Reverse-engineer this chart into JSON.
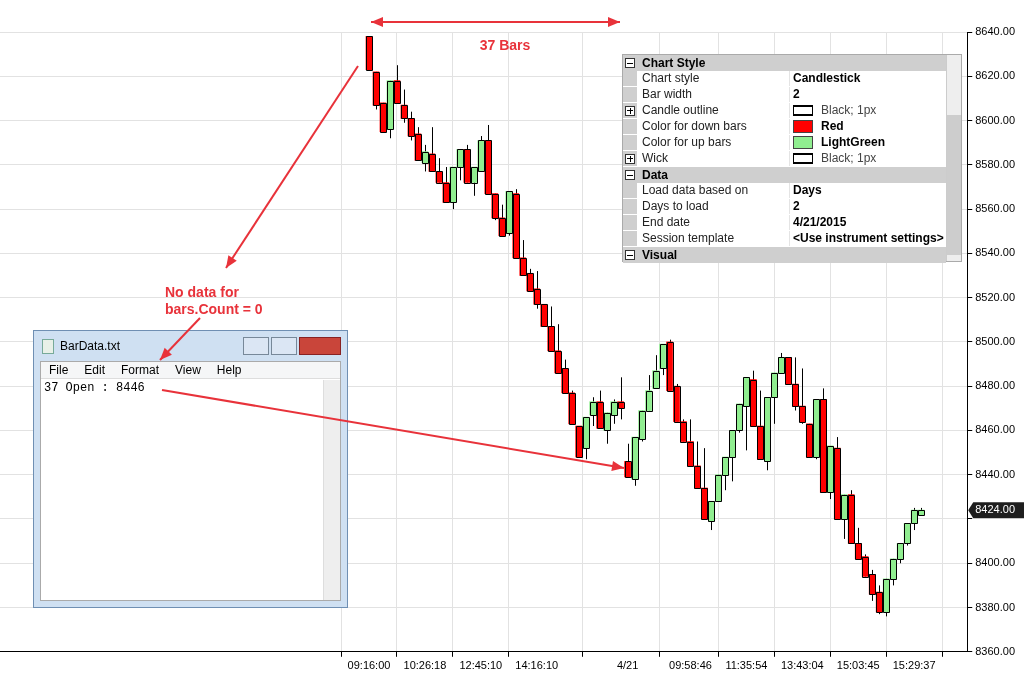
{
  "chart_data": {
    "type": "candlestick",
    "categories": [
      "09:16:00",
      null,
      null,
      null,
      null,
      null,
      null,
      null,
      "10:26:18",
      null,
      null,
      null,
      null,
      null,
      null,
      null,
      "12:45:10",
      null,
      null,
      null,
      null,
      null,
      null,
      null,
      "14:16:10",
      null,
      null,
      null,
      null,
      null,
      null,
      null,
      null,
      null,
      null,
      null,
      null,
      "4/21",
      null,
      null,
      null,
      null,
      null,
      null,
      null,
      null,
      "09:58:46",
      null,
      null,
      null,
      null,
      null,
      null,
      null,
      "11:35:54",
      null,
      null,
      null,
      null,
      null,
      null,
      null,
      "13:43:04",
      null,
      null,
      null,
      null,
      null,
      null,
      null,
      "15:03:45",
      null,
      null,
      null,
      null,
      null,
      null,
      null,
      "15:29:37",
      null
    ],
    "ohlc": [
      [
        8638,
        8638,
        8623,
        8623
      ],
      [
        8622,
        8622,
        8605,
        8607
      ],
      [
        8608,
        8608,
        8595,
        8595
      ],
      [
        8596,
        8618,
        8592,
        8618
      ],
      [
        8618,
        8625,
        8608,
        8608
      ],
      [
        8607,
        8614,
        8599,
        8601
      ],
      [
        8601,
        8604,
        8591,
        8593
      ],
      [
        8594,
        8597,
        8582,
        8582
      ],
      [
        8581,
        8589,
        8577,
        8586
      ],
      [
        8585,
        8597,
        8577,
        8577
      ],
      [
        8577,
        8583,
        8572,
        8572
      ],
      [
        8572,
        8579,
        8563,
        8563
      ],
      [
        8563,
        8579,
        8560,
        8579
      ],
      [
        8579,
        8587,
        8573,
        8587
      ],
      [
        8587,
        8589,
        8572,
        8572
      ],
      [
        8572,
        8579,
        8566,
        8579
      ],
      [
        8577,
        8593,
        8577,
        8591
      ],
      [
        8591,
        8598,
        8567,
        8567
      ],
      [
        8567,
        8567,
        8555,
        8556
      ],
      [
        8556,
        8562,
        8548,
        8548
      ],
      [
        8549,
        8568,
        8548,
        8568
      ],
      [
        8567,
        8569,
        8538,
        8538
      ],
      [
        8538,
        8546,
        8530,
        8530
      ],
      [
        8531,
        8533,
        8523,
        8523
      ],
      [
        8524,
        8532,
        8515,
        8517
      ],
      [
        8517,
        8517,
        8507,
        8507
      ],
      [
        8507,
        8516,
        8496,
        8496
      ],
      [
        8496,
        8508,
        8486,
        8486
      ],
      [
        8488,
        8492,
        8477,
        8477
      ],
      [
        8477,
        8478,
        8463,
        8463
      ],
      [
        8462,
        8462,
        8448,
        8448
      ],
      [
        8452,
        8466,
        8447,
        8466
      ],
      [
        8467,
        8475,
        8462,
        8473
      ],
      [
        8473,
        8478,
        8461,
        8461
      ],
      [
        8460,
        8468,
        8454,
        8468
      ],
      [
        8467,
        8474,
        8463,
        8473
      ],
      [
        8473,
        8484,
        8465,
        8470
      ],
      [
        8446,
        8454,
        8439,
        8439
      ],
      [
        8438,
        8457,
        8435,
        8457
      ],
      [
        8456,
        8469,
        8455,
        8469
      ],
      [
        8469,
        8485,
        8469,
        8478
      ],
      [
        8479,
        8494,
        8479,
        8487
      ],
      [
        8488,
        8499,
        8485,
        8499
      ],
      [
        8500,
        8501,
        8478,
        8478
      ],
      [
        8480,
        8481,
        8464,
        8464
      ],
      [
        8464,
        8465,
        8455,
        8455
      ],
      [
        8455,
        8465,
        8444,
        8444
      ],
      [
        8444,
        8455,
        8434,
        8434
      ],
      [
        8434,
        8452,
        8420,
        8420
      ],
      [
        8419,
        8428,
        8415,
        8428
      ],
      [
        8428,
        8440,
        8428,
        8440
      ],
      [
        8440,
        8448,
        8433,
        8448
      ],
      [
        8448,
        8460,
        8437,
        8460
      ],
      [
        8460,
        8472,
        8459,
        8472
      ],
      [
        8471,
        8484,
        8451,
        8484
      ],
      [
        8483,
        8487,
        8462,
        8462
      ],
      [
        8462,
        8478,
        8447,
        8447
      ],
      [
        8446,
        8475,
        8442,
        8475
      ],
      [
        8475,
        8486,
        8463,
        8486
      ],
      [
        8486,
        8495,
        8486,
        8493
      ],
      [
        8493,
        8493,
        8481,
        8481
      ],
      [
        8481,
        8493,
        8469,
        8471
      ],
      [
        8471,
        8488,
        8463,
        8464
      ],
      [
        8463,
        8463,
        8448,
        8448
      ],
      [
        8448,
        8474,
        8447,
        8474
      ],
      [
        8474,
        8479,
        8432,
        8432
      ],
      [
        8432,
        8453,
        8429,
        8453
      ],
      [
        8452,
        8457,
        8420,
        8420
      ],
      [
        8420,
        8431,
        8411,
        8431
      ],
      [
        8431,
        8433,
        8409,
        8409
      ],
      [
        8409,
        8416,
        8402,
        8402
      ],
      [
        8403,
        8404,
        8394,
        8394
      ],
      [
        8395,
        8397,
        8383,
        8386
      ],
      [
        8387,
        8390,
        8377,
        8378
      ],
      [
        8378,
        8393,
        8376,
        8393
      ],
      [
        8393,
        8402,
        8390,
        8402
      ],
      [
        8402,
        8409,
        8400,
        8409
      ],
      [
        8409,
        8418,
        8408,
        8418
      ],
      [
        8418,
        8425,
        8415,
        8424
      ],
      [
        8422,
        8425,
        8422,
        8424
      ]
    ],
    "colors": [
      "#ff0000",
      "#ff0000",
      "#ff0000",
      "#90ee90",
      "#ff0000",
      "#ff0000",
      "#ff0000",
      "#ff0000",
      "#90ee90",
      "#ff0000",
      "#ff0000",
      "#ff0000",
      "#90ee90",
      "#90ee90",
      "#ff0000",
      "#90ee90",
      "#90ee90",
      "#ff0000",
      "#ff0000",
      "#ff0000",
      "#90ee90",
      "#ff0000",
      "#ff0000",
      "#ff0000",
      "#ff0000",
      "#ff0000",
      "#ff0000",
      "#ff0000",
      "#ff0000",
      "#ff0000",
      "#ff0000",
      "#90ee90",
      "#90ee90",
      "#ff0000",
      "#90ee90",
      "#90ee90",
      "#ff0000",
      "#ff0000",
      "#90ee90",
      "#90ee90",
      "#90ee90",
      "#90ee90",
      "#90ee90",
      "#ff0000",
      "#ff0000",
      "#ff0000",
      "#ff0000",
      "#ff0000",
      "#ff0000",
      "#90ee90",
      "#90ee90",
      "#90ee90",
      "#90ee90",
      "#90ee90",
      "#90ee90",
      "#ff0000",
      "#ff0000",
      "#90ee90",
      "#90ee90",
      "#90ee90",
      "#ff0000",
      "#ff0000",
      "#ff0000",
      "#ff0000",
      "#90ee90",
      "#ff0000",
      "#90ee90",
      "#ff0000",
      "#90ee90",
      "#ff0000",
      "#ff0000",
      "#ff0000",
      "#ff0000",
      "#ff0000",
      "#90ee90",
      "#90ee90",
      "#90ee90",
      "#90ee90",
      "#90ee90",
      "#90ee90"
    ],
    "ylim": [
      8360,
      8640
    ],
    "yticks": [
      {
        "value": 8360,
        "label": "8360.00"
      },
      {
        "value": 8380,
        "label": "8380.00"
      },
      {
        "value": 8400,
        "label": "8400.00"
      },
      {
        "value": 8420,
        "label": null
      },
      {
        "value": 8440,
        "label": "8440.00"
      },
      {
        "value": 8460,
        "label": "8460.00"
      },
      {
        "value": 8480,
        "label": "8480.00"
      },
      {
        "value": 8500,
        "label": "8500.00"
      },
      {
        "value": 8520,
        "label": "8520.00"
      },
      {
        "value": 8540,
        "label": "8540.00"
      },
      {
        "value": 8560,
        "label": "8560.00"
      },
      {
        "value": 8580,
        "label": "8580.00"
      },
      {
        "value": 8600,
        "label": "8600.00"
      },
      {
        "value": 8620,
        "label": "8620.00"
      },
      {
        "value": 8640,
        "label": "8640.00"
      }
    ],
    "grid": true,
    "annotations": [
      "37 Bars",
      "No data for bars.Count = 0",
      "BarData.txt",
      "File",
      "Edit",
      "Format",
      "View",
      "Help",
      "37 Open : 8446",
      "Chart Style",
      "Chart style",
      "Candlestick",
      "Bar width",
      "2",
      "Candle outline",
      "Black; 1px",
      "Color for down bars",
      "Red",
      "Color for up bars",
      "LightGreen",
      "Wick",
      "Black; 1px",
      "Data",
      "Load data based on",
      "Days",
      "Days to load",
      "2",
      "End date",
      "4/21/2015",
      "Session template",
      "<Use instrument settings>",
      "Visual",
      "8424.00"
    ]
  }
}
